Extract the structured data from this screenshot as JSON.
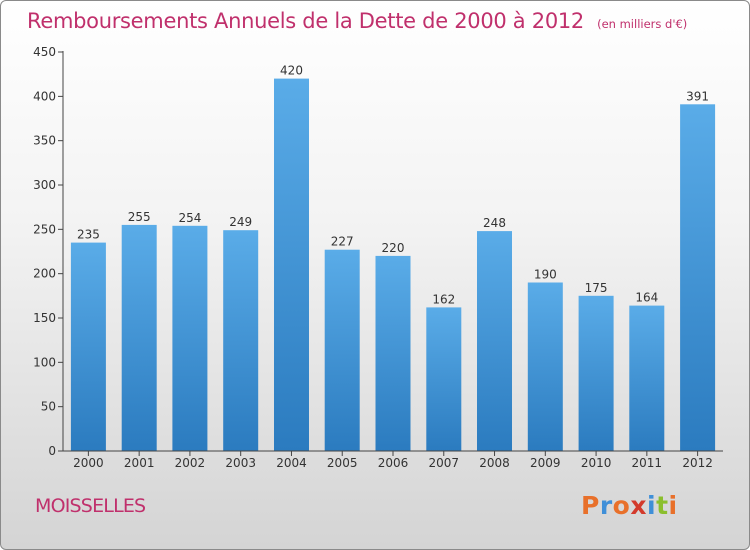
{
  "header": {
    "title": "Remboursements Annuels de la Dette de 2000 à 2012",
    "subtitle": "(en milliers d'€)"
  },
  "footer": {
    "town": "MOISSELLES",
    "logo_text": "Proxiti"
  },
  "colors": {
    "title": "#c0306c",
    "bar_light": "#5aace8",
    "bar_dark": "#2b7bbf",
    "axis": "#444444",
    "logo_letters": [
      "#e8702a",
      "#3f8fd8",
      "#e8702a",
      "#d33a2c",
      "#3f8fd8",
      "#8bbf2e",
      "#e8702a"
    ]
  },
  "chart_data": {
    "type": "bar",
    "title": "Remboursements Annuels de la Dette de 2000 à 2012",
    "subtitle": "(en milliers d'€)",
    "categories": [
      "2000",
      "2001",
      "2002",
      "2003",
      "2004",
      "2005",
      "2006",
      "2007",
      "2008",
      "2009",
      "2010",
      "2011",
      "2012"
    ],
    "values": [
      235,
      255,
      254,
      249,
      420,
      227,
      220,
      162,
      248,
      190,
      175,
      164,
      391
    ],
    "ylim": [
      0,
      450
    ],
    "yticks": [
      0,
      50,
      100,
      150,
      200,
      250,
      300,
      350,
      400,
      450
    ],
    "grid": false,
    "legend": "none"
  }
}
